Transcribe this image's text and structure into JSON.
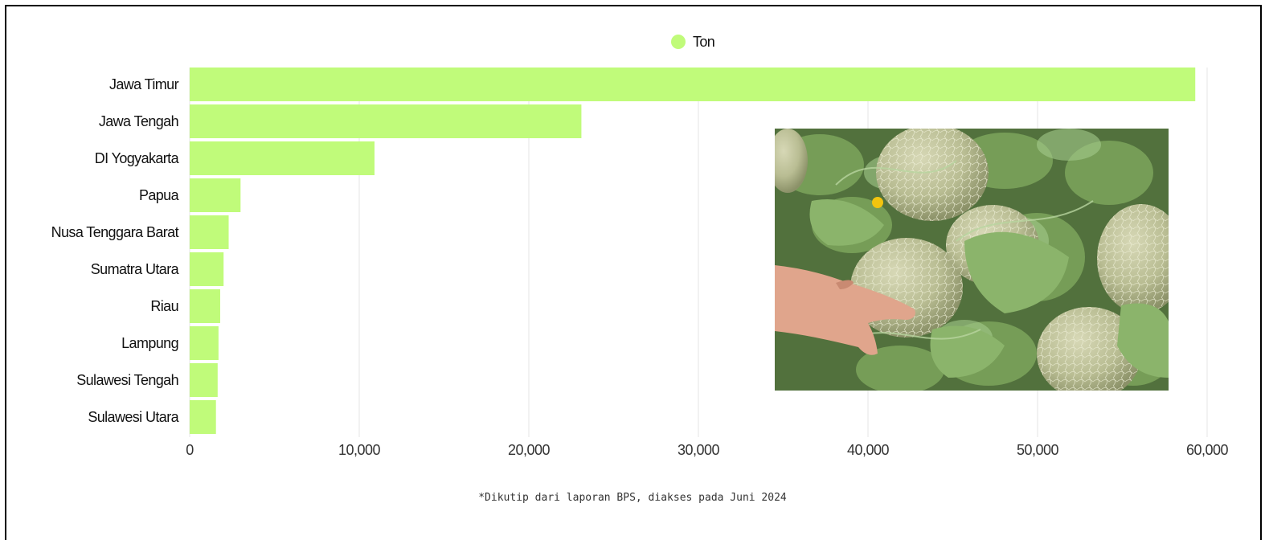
{
  "chart_data": {
    "type": "bar",
    "orientation": "horizontal",
    "categories": [
      "Jawa Timur",
      "Jawa Tengah",
      "DI Yogyakarta",
      "Papua",
      "Nusa Tenggara Barat",
      "Sumatra Utara",
      "Riau",
      "Lampung",
      "Sulawesi Tengah",
      "Sulawesi Utara"
    ],
    "series": [
      {
        "name": "Ton",
        "values": [
          59300,
          23100,
          10900,
          3000,
          2300,
          2000,
          1800,
          1700,
          1650,
          1550
        ],
        "color": "#c0fb7a"
      }
    ],
    "xlim": [
      0,
      60000
    ],
    "xticks": [
      0,
      10000,
      20000,
      30000,
      40000,
      50000,
      60000
    ],
    "xtick_labels": [
      "0",
      "10,000",
      "20,000",
      "30,000",
      "40,000",
      "50,000",
      "60,000"
    ],
    "grid": "vertical",
    "legend": "top-center"
  },
  "note": "*Dikutip dari laporan BPS, diakses pada Juni 2024",
  "photo": {
    "icon": "melon-field-photo"
  }
}
